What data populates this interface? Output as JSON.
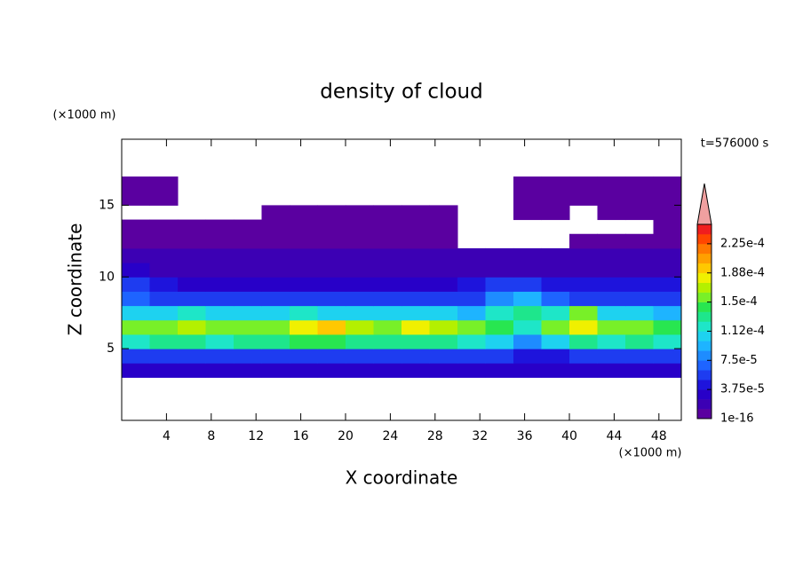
{
  "chart_data": {
    "type": "contour",
    "title": "density of cloud",
    "x_label": "X coordinate",
    "y_label": "Z coordinate",
    "x_unit": "(×1000 m)",
    "y_unit": "(×1000 m)",
    "time_label": "t=576000 s",
    "xlim": [
      0,
      50
    ],
    "ylim": [
      0,
      19.6
    ],
    "xticks": [
      4,
      8,
      12,
      16,
      20,
      24,
      28,
      32,
      36,
      40,
      44,
      48
    ],
    "yticks": [
      5,
      10,
      15
    ],
    "x": [
      1.25,
      3.75,
      6.25,
      8.75,
      11.25,
      13.75,
      16.25,
      18.75,
      21.25,
      23.75,
      26.25,
      28.75,
      31.25,
      33.75,
      36.25,
      38.75,
      41.25,
      43.75,
      46.25,
      48.75
    ],
    "z": [
      3.5,
      4.5,
      5.5,
      6.5,
      7.5,
      8.5,
      9.5,
      10.5,
      11.5,
      12.5,
      13.5,
      14.5,
      15.5,
      16.5
    ],
    "values": [
      [
        2.5e-05,
        2.5e-05,
        2.5e-05,
        2.5e-05,
        2.5e-05,
        2.5e-05,
        2.5e-05,
        2.5e-05,
        2.5e-05,
        2.5e-05,
        2.5e-05,
        2.5e-05,
        2.5e-05,
        2.5e-05,
        2.5e-05,
        2.5e-05,
        2.5e-05,
        2.5e-05,
        2.5e-05,
        2.5e-05
      ],
      [
        6e-05,
        5e-05,
        6e-05,
        6e-05,
        5e-05,
        6e-05,
        6e-05,
        6e-05,
        5e-05,
        6e-05,
        6e-05,
        6e-05,
        5e-05,
        5e-05,
        4e-05,
        4e-05,
        5e-05,
        6e-05,
        6e-05,
        6e-05
      ],
      [
        0.00012,
        0.00013,
        0.00013,
        0.00012,
        0.00013,
        0.00013,
        0.00014,
        0.00014,
        0.00013,
        0.00013,
        0.00013,
        0.00013,
        0.00012,
        0.00011,
        8e-05,
        0.0001,
        0.00013,
        0.00012,
        0.00013,
        0.00012
      ],
      [
        0.00015,
        0.00016,
        0.00017,
        0.00016,
        0.00015,
        0.00016,
        0.00018,
        0.00019,
        0.00017,
        0.00016,
        0.00018,
        0.00017,
        0.00015,
        0.00014,
        0.00012,
        0.00015,
        0.00018,
        0.00015,
        0.00016,
        0.00014
      ],
      [
        0.0001,
        0.00011,
        0.00012,
        0.00011,
        0.0001,
        0.00011,
        0.00012,
        0.00011,
        0.0001,
        0.0001,
        0.00011,
        0.0001,
        9e-05,
        0.00012,
        0.00013,
        0.00012,
        0.00016,
        0.00011,
        0.0001,
        9e-05
      ],
      [
        7e-05,
        6e-05,
        5e-05,
        5e-05,
        5e-05,
        5e-05,
        5e-05,
        5e-05,
        5e-05,
        5e-05,
        5e-05,
        5e-05,
        6e-05,
        8e-05,
        9e-05,
        7e-05,
        6e-05,
        6e-05,
        6e-05,
        6e-05
      ],
      [
        5e-05,
        4e-05,
        3e-05,
        3e-05,
        3e-05,
        3e-05,
        3e-05,
        3e-05,
        3e-05,
        3e-05,
        3e-05,
        3e-05,
        4e-05,
        5e-05,
        5e-05,
        4e-05,
        4e-05,
        4e-05,
        4e-05,
        4e-05
      ],
      [
        3e-05,
        2e-05,
        2e-05,
        2e-05,
        2e-05,
        2e-05,
        2e-05,
        2e-05,
        2e-05,
        2e-05,
        2e-05,
        2e-05,
        2e-05,
        2e-05,
        2e-05,
        2e-05,
        2e-05,
        2e-05,
        2e-05,
        2e-05
      ],
      [
        1.3e-05,
        1.3e-05,
        1.3e-05,
        1.3e-05,
        1.3e-05,
        1.3e-05,
        1.3e-05,
        1.3e-05,
        1.3e-05,
        1.3e-05,
        1.3e-05,
        1.3e-05,
        1.3e-05,
        1.3e-05,
        1.3e-05,
        1.3e-05,
        1.3e-05,
        1.3e-05,
        1.3e-05,
        1.3e-05
      ],
      [
        5e-06,
        5e-06,
        5e-06,
        5e-06,
        5e-06,
        5e-06,
        5e-06,
        5e-06,
        5e-06,
        5e-06,
        5e-06,
        5e-06,
        null,
        null,
        null,
        null,
        5e-06,
        5e-06,
        5e-06,
        5e-06
      ],
      [
        3e-06,
        3e-06,
        3e-06,
        3e-06,
        3e-06,
        3e-06,
        3e-06,
        3e-06,
        3e-06,
        3e-06,
        3e-06,
        3e-06,
        null,
        null,
        null,
        null,
        null,
        null,
        null,
        3e-06
      ],
      [
        null,
        null,
        null,
        null,
        null,
        3e-06,
        3e-06,
        3e-06,
        3e-06,
        3e-06,
        3e-06,
        3e-06,
        null,
        null,
        3e-06,
        3e-06,
        null,
        3e-06,
        3e-06,
        3e-06
      ],
      [
        3e-06,
        3e-06,
        null,
        null,
        null,
        null,
        null,
        null,
        null,
        null,
        null,
        null,
        null,
        null,
        3e-06,
        3e-06,
        3e-06,
        3e-06,
        3e-06,
        3e-06
      ],
      [
        3e-06,
        3e-06,
        null,
        null,
        null,
        null,
        null,
        null,
        null,
        null,
        null,
        null,
        null,
        null,
        3e-06,
        3e-06,
        3e-06,
        3e-06,
        3e-06,
        3e-06
      ]
    ],
    "colorbar": {
      "clim": [
        1e-16,
        0.00025
      ],
      "levels": [
        1e-16,
        1.25e-05,
        2.5e-05,
        3.75e-05,
        5e-05,
        6.25e-05,
        7.5e-05,
        8.75e-05,
        0.0001,
        0.0001125,
        0.000125,
        0.0001375,
        0.00015,
        0.0001625,
        0.000175,
        0.0001875,
        0.0002,
        0.0002125,
        0.000225,
        0.0002375,
        0.00025
      ],
      "colors": [
        "#5a00a0",
        "#3c00b4",
        "#2800c8",
        "#1e14dc",
        "#1e3cf0",
        "#1e64ff",
        "#1e8cff",
        "#1eb4ff",
        "#1ed2f0",
        "#1ee6c8",
        "#1ee68c",
        "#28e650",
        "#78f028",
        "#b4f000",
        "#f0f000",
        "#ffc800",
        "#ffa000",
        "#ff7800",
        "#ff4600",
        "#f01e1e"
      ],
      "over_color": "#f0a0a0",
      "ticks": [
        1e-16,
        {
          "value": 3.75e-05,
          "label": "3.75e-5"
        },
        {
          "value": 7.5e-05,
          "label": "7.5e-5"
        },
        {
          "value": 0.0001125,
          "label": "1.12e-4"
        },
        {
          "value": 0.00015,
          "label": "1.5e-4"
        },
        {
          "value": 0.0001875,
          "label": "1.88e-4"
        },
        {
          "value": 0.000225,
          "label": "2.25e-4"
        }
      ]
    }
  }
}
